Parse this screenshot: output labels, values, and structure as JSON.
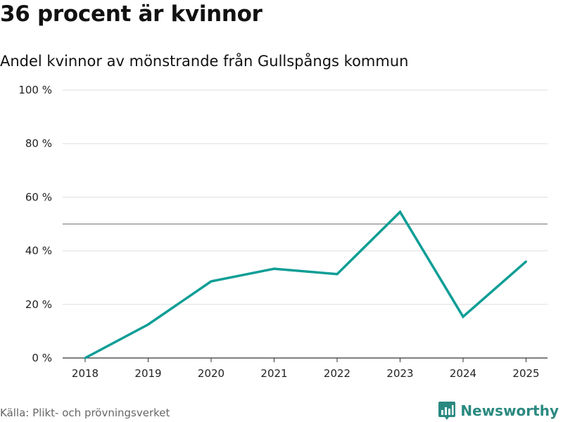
{
  "header": {
    "title": "36 procent är kvinnor",
    "subtitle": "Andel kvinnor av mönstrande från Gullspångs kommun"
  },
  "footer": {
    "source": "Källa: Plikt- och prövningsverket",
    "brand": "Newsworthy"
  },
  "colors": {
    "line": "#0e9e96",
    "grid": "#dddddd",
    "reference": "#888888",
    "axis": "#333333",
    "brand": "#2b8a80"
  },
  "chart_data": {
    "type": "line",
    "title": "36 procent är kvinnor",
    "subtitle": "Andel kvinnor av mönstrande från Gullspångs kommun",
    "xlabel": "",
    "ylabel": "",
    "categories": [
      "2018",
      "2019",
      "2020",
      "2021",
      "2022",
      "2023",
      "2024",
      "2025"
    ],
    "series": [
      {
        "name": "Andel kvinnor",
        "values": [
          0,
          12.5,
          28.6,
          33.3,
          31.3,
          54.5,
          15.4,
          36
        ]
      }
    ],
    "ylim": [
      0,
      100
    ],
    "yticks": [
      0,
      20,
      40,
      60,
      80,
      100
    ],
    "ytick_labels": [
      "0 %",
      "20 %",
      "40 %",
      "60 %",
      "80 %",
      "100 %"
    ],
    "reference_line": 50,
    "grid": true,
    "legend": "none"
  }
}
